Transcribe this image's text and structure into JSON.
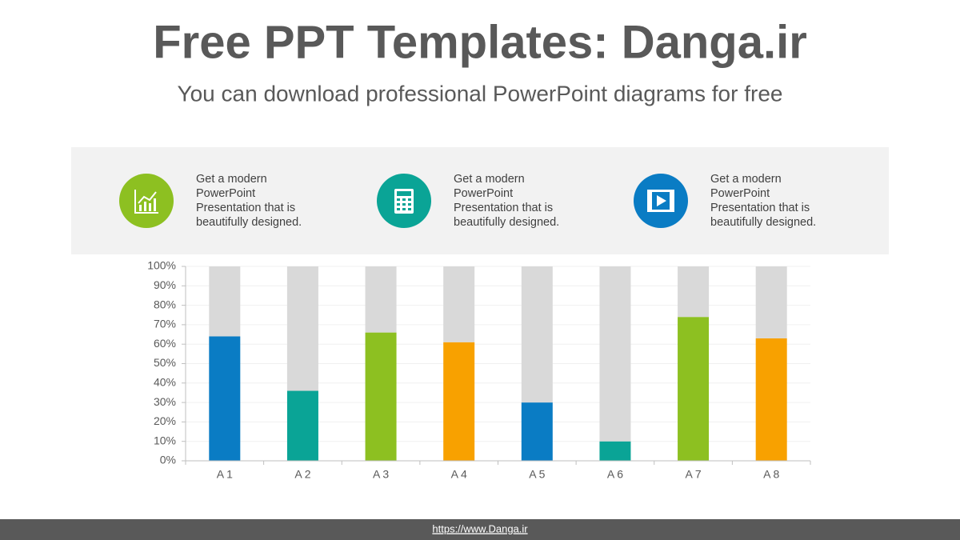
{
  "header": {
    "title": "Free PPT Templates: Danga.ir",
    "subtitle": "You can download professional PowerPoint diagrams for free"
  },
  "panel": {
    "items": [
      {
        "lines": [
          "Get a modern",
          "PowerPoint",
          "Presentation that is",
          "beautifully designed."
        ]
      },
      {
        "lines": [
          "Get a modern",
          "PowerPoint",
          "Presentation that is",
          "beautifully designed."
        ]
      },
      {
        "lines": [
          "Get a modern",
          "PowerPoint",
          "Presentation that is",
          "beautifully designed."
        ]
      }
    ]
  },
  "chart_data": {
    "type": "stacked_bar",
    "categories": [
      "A 1",
      "A 2",
      "A 3",
      "A 4",
      "A 5",
      "A 6",
      "A 7",
      "A 8"
    ],
    "series": [
      {
        "colors": [
          "#0a7cc4",
          "#0aa496",
          "#8dc021",
          "#f8a100",
          "#0a7cc4",
          "#0aa496",
          "#8dc021",
          "#f8a100"
        ],
        "values": [
          64,
          36,
          66,
          61,
          30,
          10,
          74,
          63
        ]
      },
      {
        "color": "#d9d9d9",
        "values": [
          36,
          64,
          34,
          39,
          70,
          90,
          26,
          37
        ]
      }
    ],
    "ylim": [
      0,
      100
    ],
    "yticks": [
      {
        "value": 0,
        "label": "0%"
      },
      {
        "value": 10,
        "label": "10%"
      },
      {
        "value": 20,
        "label": "20%"
      },
      {
        "value": 30,
        "label": "30%"
      },
      {
        "value": 40,
        "label": "40%"
      },
      {
        "value": 50,
        "label": "50%"
      },
      {
        "value": 60,
        "label": "60%"
      },
      {
        "value": 70,
        "label": "70%"
      },
      {
        "value": 80,
        "label": "80%"
      },
      {
        "value": 90,
        "label": "90%"
      },
      {
        "value": 100,
        "label": "100%"
      }
    ],
    "grid": true
  },
  "footer": {
    "link": "https://www.Danga.ir"
  }
}
